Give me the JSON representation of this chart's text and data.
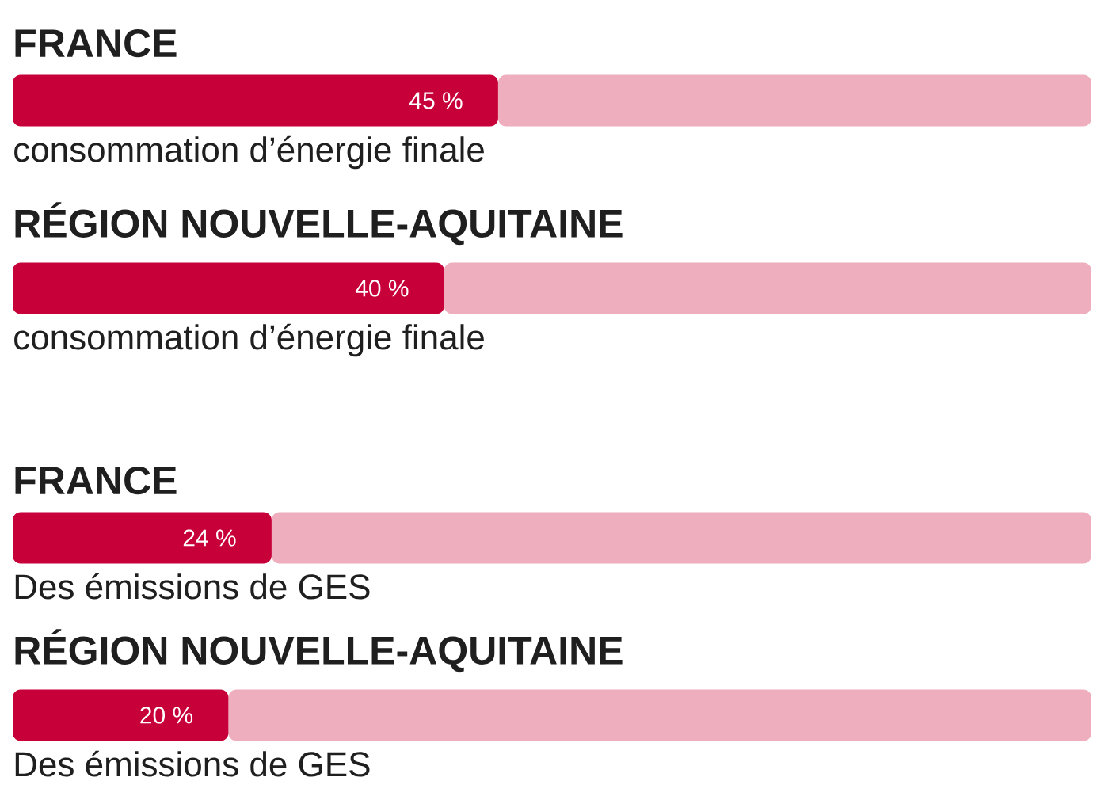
{
  "chart_data": [
    {
      "type": "bar",
      "orientation": "horizontal",
      "stacked": true,
      "categories": [
        "FRANCE",
        "RÉGION NOUVELLE-AQUITAINE"
      ],
      "xlim": [
        0,
        100
      ],
      "tick_labels": "y",
      "annotations": [
        "consommation d’énergie finale",
        "consommation d’énergie finale"
      ],
      "series": [
        {
          "color": "#c8003a",
          "values": [
            45,
            40
          ],
          "value_labels": [
            "45 %",
            "40 %"
          ]
        },
        {
          "color": "#eeaebe",
          "values": [
            55,
            60
          ]
        }
      ]
    },
    {
      "type": "bar",
      "orientation": "horizontal",
      "stacked": true,
      "categories": [
        "FRANCE",
        "RÉGION NOUVELLE-AQUITAINE"
      ],
      "xlim": [
        0,
        100
      ],
      "tick_labels": "y",
      "annotations": [
        "Des émissions de GES",
        "Des émissions de GES"
      ],
      "series": [
        {
          "color": "#c8003a",
          "values": [
            24,
            20
          ],
          "value_labels": [
            "24 %",
            "20 %"
          ]
        },
        {
          "color": "#eeaebe",
          "values": [
            76,
            80
          ]
        }
      ]
    }
  ]
}
